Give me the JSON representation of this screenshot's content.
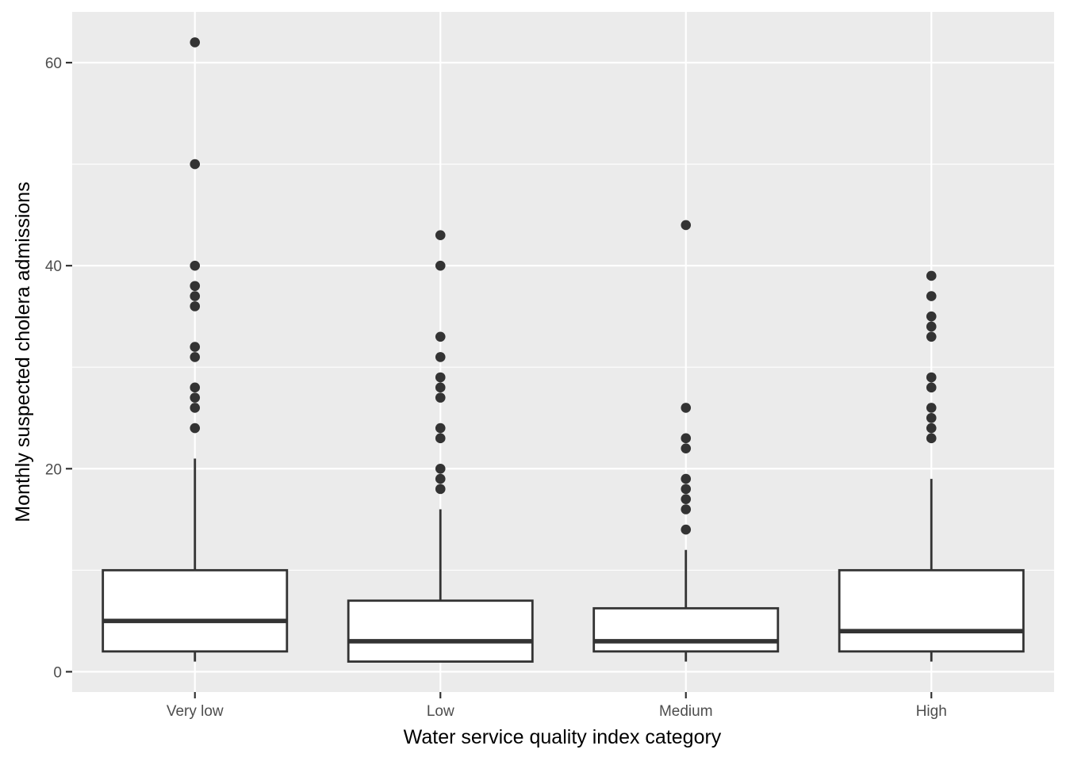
{
  "chart_data": {
    "type": "boxplot",
    "title": "",
    "xlabel": "Water service quality index category",
    "ylabel": "Monthly suspected cholera admissions",
    "ylim": [
      -2,
      65
    ],
    "yticks": [
      0,
      20,
      40,
      60
    ],
    "ytick_labels": [
      "0",
      "20",
      "40",
      "60"
    ],
    "grid": true,
    "categories": [
      "Very low",
      "Low",
      "Medium",
      "High"
    ],
    "boxes": [
      {
        "category": "Very low",
        "whisker_low": 1,
        "q1": 2,
        "median": 5,
        "q3": 10,
        "whisker_high": 21,
        "outliers": [
          24,
          26,
          27,
          28,
          31,
          32,
          36,
          37,
          38,
          40,
          50,
          62
        ]
      },
      {
        "category": "Low",
        "whisker_low": 1,
        "q1": 1,
        "median": 3,
        "q3": 7,
        "whisker_high": 16,
        "outliers": [
          18,
          19,
          20,
          23,
          24,
          27,
          28,
          29,
          31,
          33,
          40,
          43
        ]
      },
      {
        "category": "Medium",
        "whisker_low": 1,
        "q1": 2,
        "median": 3,
        "q3": 6.25,
        "whisker_high": 12,
        "outliers": [
          14,
          16,
          17,
          18,
          19,
          22,
          23,
          26,
          44
        ]
      },
      {
        "category": "High",
        "whisker_low": 1,
        "q1": 2,
        "median": 4,
        "q3": 10,
        "whisker_high": 19,
        "outliers": [
          23,
          24,
          25,
          26,
          28,
          29,
          33,
          34,
          35,
          37,
          39
        ]
      }
    ],
    "colors": {
      "panel_background": "#ebebeb",
      "grid_major": "#ffffff",
      "box_fill": "#ffffff",
      "box_stroke": "#333333",
      "outlier": "#333333",
      "tick_label": "#4d4d4d",
      "axis_title": "#000000"
    }
  }
}
